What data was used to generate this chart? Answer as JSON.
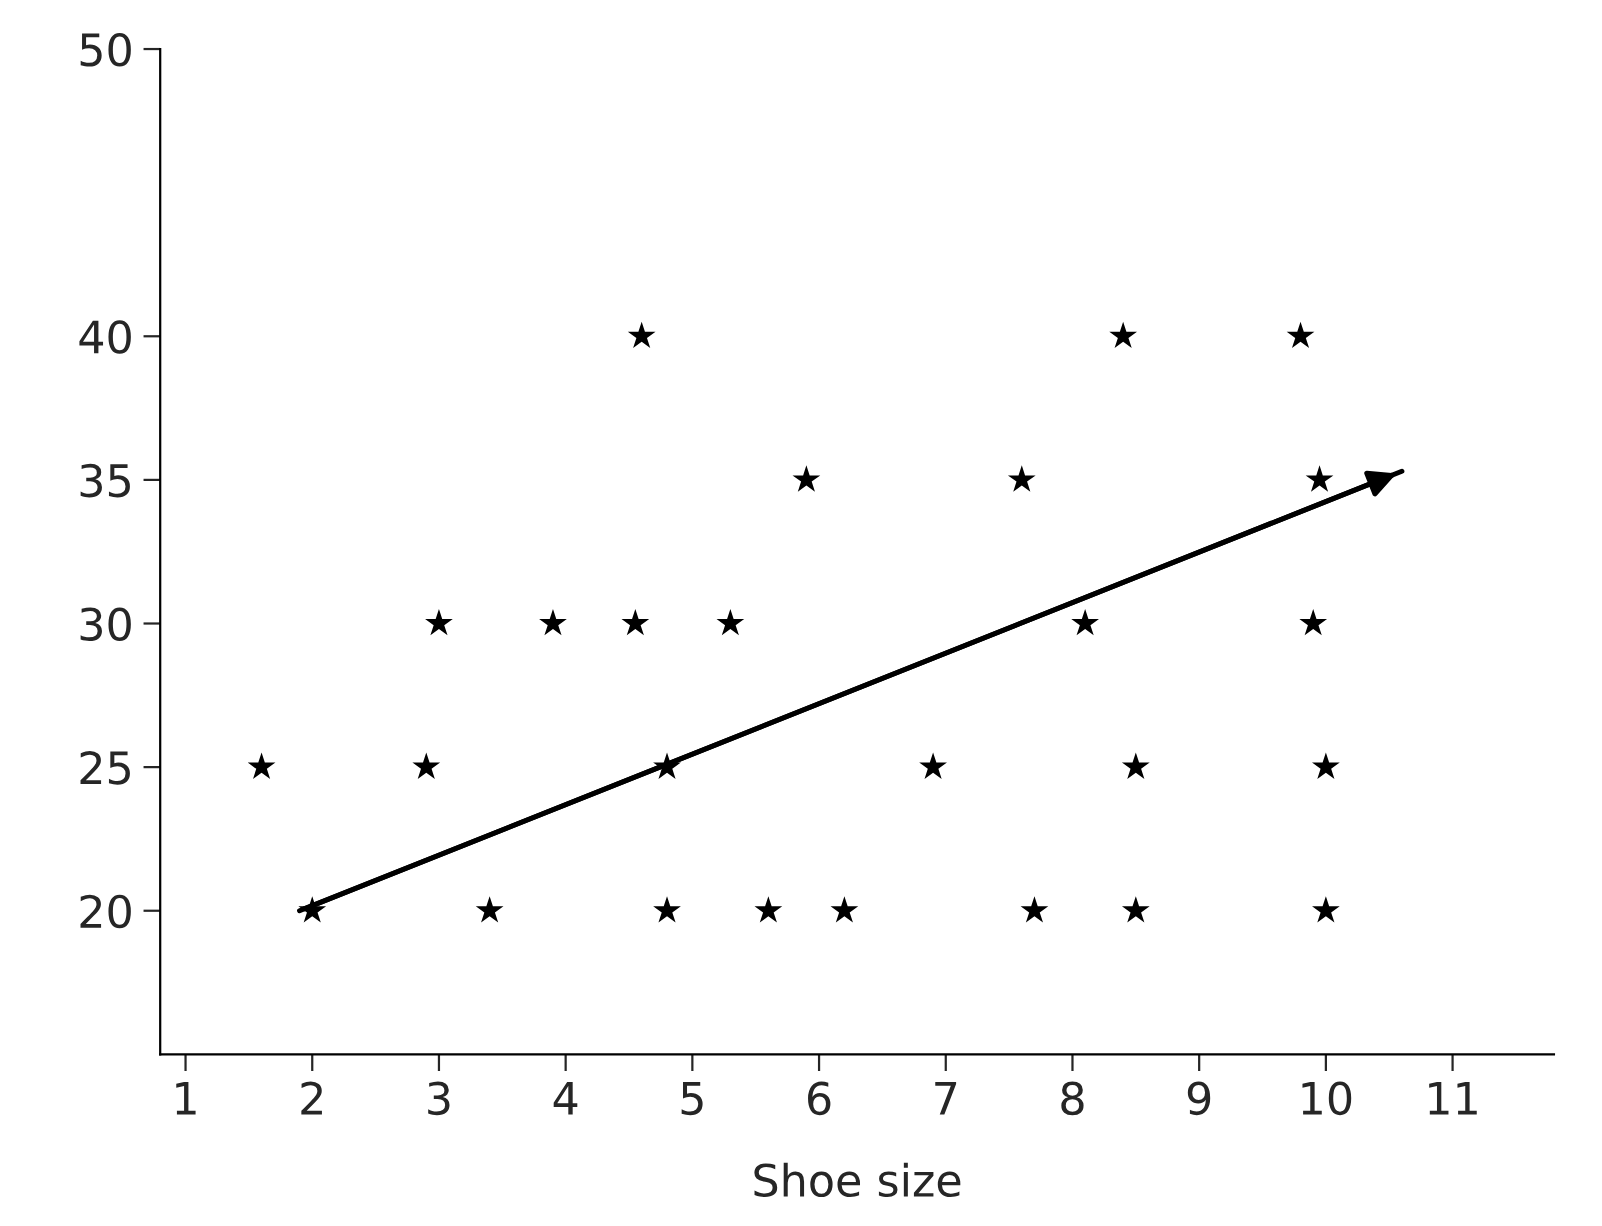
{
  "chart_data": {
    "type": "scatter",
    "xlabel": "Shoe size",
    "xlim": [
      0.8,
      11.8
    ],
    "xticks": [
      1,
      2,
      3,
      4,
      5,
      6,
      7,
      8,
      9,
      10,
      11
    ],
    "ylim": [
      15,
      50
    ],
    "yticks": [
      20,
      25,
      30,
      35,
      40,
      50
    ],
    "grid": false,
    "marker": "star",
    "series": [
      {
        "color": "#000000",
        "x": [
          4.6,
          8.4,
          9.8,
          5.9,
          7.6,
          9.95,
          3.0,
          3.9,
          4.55,
          5.3,
          8.1,
          9.9,
          1.6,
          2.9,
          4.8,
          6.9,
          8.5,
          10.0,
          2.0,
          3.4,
          4.8,
          5.6,
          6.2,
          7.7,
          8.5,
          10.0
        ],
        "values": [
          40,
          40,
          40,
          35,
          35,
          35,
          30,
          30,
          30,
          30,
          30,
          30,
          25,
          25,
          25,
          25,
          25,
          25,
          20,
          20,
          20,
          20,
          20,
          20,
          20,
          20
        ]
      },
      {
        "type": "line",
        "marker": "none",
        "color": "#000000",
        "x": [
          1.9,
          10.6
        ],
        "values": [
          20,
          35.3
        ]
      }
    ]
  }
}
